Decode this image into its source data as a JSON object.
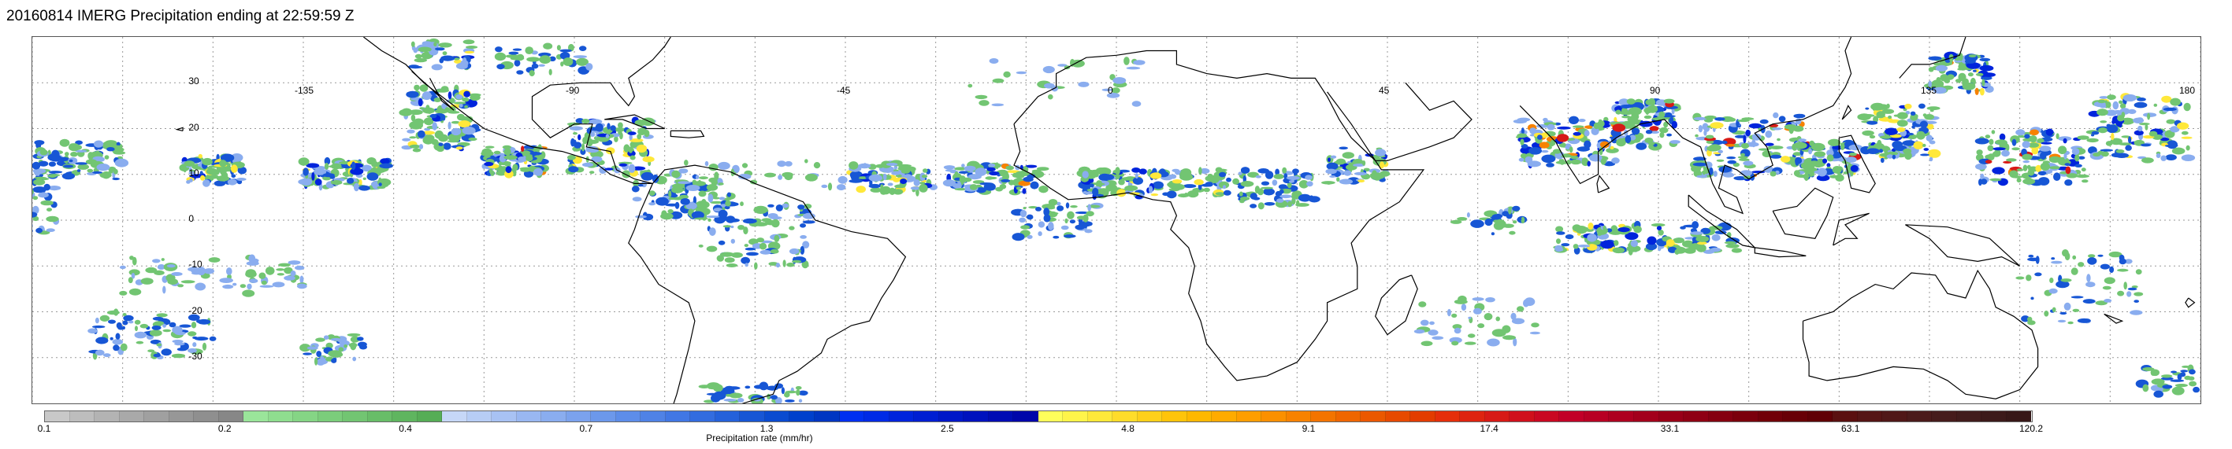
{
  "title": "20160814 IMERG Precipitation ending at 22:59:59 Z",
  "map": {
    "projection": "equirectangular",
    "lon_range": [
      -180,
      180
    ],
    "lat_range": [
      -40,
      40
    ],
    "grid_lines": true,
    "lat_labels": [
      "30",
      "20",
      "10",
      "0",
      "-10",
      "-20",
      "-30"
    ],
    "lon_labels": [
      "-135",
      "-90",
      "-45",
      "0",
      "45",
      "90",
      "135",
      "180"
    ],
    "coastline_color": "#000000",
    "grid_color": "#9a9a9a"
  },
  "colorbar": {
    "label": "Precipitation rate (mm/hr)",
    "tick_labels": [
      "0.1",
      "0.2",
      "0.4",
      "0.7",
      "1.3",
      "2.5",
      "4.8",
      "9.1",
      "17.4",
      "33.1",
      "63.1",
      "120.2"
    ],
    "colors": [
      "#c8c8c8",
      "#bdbdbd",
      "#b3b3b3",
      "#a9a9a9",
      "#a0a0a0",
      "#979797",
      "#8f8f8f",
      "#878787",
      "#9ae59a",
      "#8fdd8f",
      "#85d585",
      "#7bcd7b",
      "#72c572",
      "#68bd68",
      "#5fb55f",
      "#56ad56",
      "#c6d7f7",
      "#b7cdf5",
      "#a8c2f3",
      "#99b7f1",
      "#8aadef",
      "#7ba2ed",
      "#6c98eb",
      "#5d8de9",
      "#4f82e6",
      "#4177e4",
      "#336cdf",
      "#2561da",
      "#1756d5",
      "#0a4bd0",
      "#0040cc",
      "#0036c2",
      "#0030f0",
      "#002ae6",
      "#0024dc",
      "#001ed2",
      "#0018c8",
      "#0012be",
      "#000cb4",
      "#0006aa",
      "#ffff5a",
      "#fff44a",
      "#ffe83a",
      "#ffdc2a",
      "#ffd01a",
      "#ffc40a",
      "#ffb800",
      "#ffab00",
      "#ff9e00",
      "#fb9000",
      "#f78200",
      "#f37400",
      "#ef6600",
      "#eb5800",
      "#e74a00",
      "#e33c00",
      "#e52e0a",
      "#de2410",
      "#d71a16",
      "#d0101c",
      "#c90822",
      "#c20028",
      "#b80024",
      "#ae0020",
      "#a3001c",
      "#990018",
      "#8f0014",
      "#850010",
      "#7b000c",
      "#710008",
      "#680006",
      "#600005",
      "#5a1010",
      "#551515",
      "#501818",
      "#4b1b1b",
      "#461c1c",
      "#411c1c",
      "#3c1a1a",
      "#371818"
    ]
  }
}
